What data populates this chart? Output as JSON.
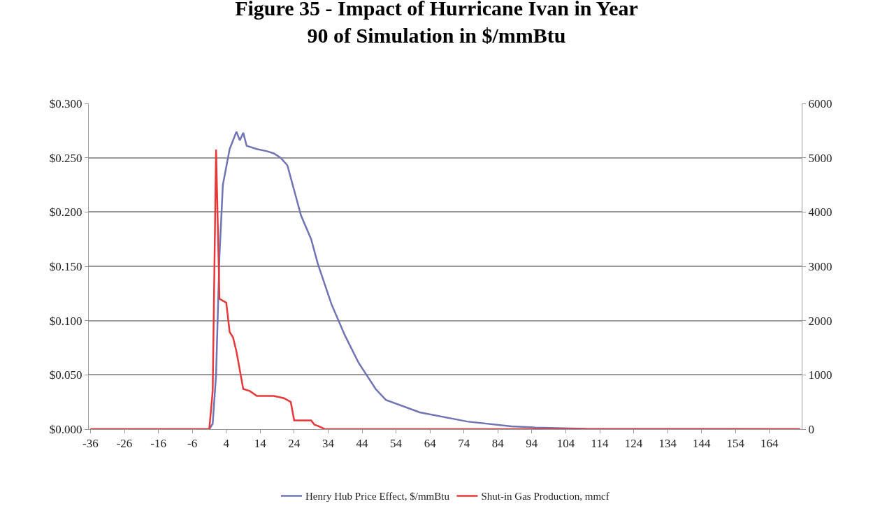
{
  "chart_data": {
    "type": "line",
    "title": "Figure 35 - Impact of Hurricane Ivan in Year 90 of Simulation in $/mmBtu",
    "xlim": [
      -36.5,
      173.5
    ],
    "xticks": [
      -36,
      -26,
      -16,
      -6,
      4,
      14,
      24,
      34,
      44,
      54,
      64,
      74,
      84,
      94,
      104,
      114,
      124,
      134,
      144,
      154,
      164
    ],
    "ylim": [
      0,
      0.3
    ],
    "yticks": [
      {
        "value": 0,
        "label": "$0.000"
      },
      {
        "value": 0.05,
        "label": "$0.050"
      },
      {
        "value": 0.1,
        "label": "$0.100"
      },
      {
        "value": 0.15,
        "label": "$0.150"
      },
      {
        "value": 0.2,
        "label": "$0.200"
      },
      {
        "value": 0.25,
        "label": "$0.250"
      },
      {
        "value": 0.3,
        "label": "$0.300"
      }
    ],
    "y2lim": [
      0,
      6000
    ],
    "y2ticks": [
      0,
      1000,
      2000,
      3000,
      4000,
      5000,
      6000
    ],
    "grid": "y",
    "legend": "bottom",
    "marker": "none",
    "line_style": "solid",
    "series": [
      {
        "name": "Henry Hub Price Effect, $/mmBtu",
        "color": "#7174b4",
        "x": [
          -36,
          -1,
          0,
          1,
          2,
          3,
          5,
          6,
          7,
          8,
          9,
          10,
          13,
          16,
          18,
          20,
          22,
          24,
          26,
          29,
          31,
          35,
          39,
          43,
          48,
          51,
          61,
          75,
          88,
          95,
          110,
          173
        ],
        "values": [
          0,
          0,
          0.005,
          0.05,
          0.16,
          0.225,
          0.258,
          0.266,
          0.274,
          0.266,
          0.273,
          0.261,
          0.258,
          0.256,
          0.254,
          0.25,
          0.243,
          0.22,
          0.197,
          0.175,
          0.152,
          0.115,
          0.086,
          0.061,
          0.037,
          0.027,
          0.0155,
          0.007,
          0.0026,
          0.0015,
          0.0003,
          0
        ]
      },
      {
        "name": "Shut-in Gas Production, mmcf",
        "color": "#e8383a",
        "axis": "y2",
        "x": [
          -36,
          -1,
          0,
          1,
          2,
          4,
          5,
          6,
          7,
          9,
          11,
          13,
          18,
          21,
          23,
          24,
          29,
          30,
          31,
          33,
          173
        ],
        "values": [
          0,
          0,
          700,
          5150,
          2400,
          2330,
          1790,
          1690,
          1430,
          740,
          700,
          610,
          610,
          570,
          500,
          160,
          160,
          80,
          60,
          0,
          0
        ]
      }
    ]
  }
}
